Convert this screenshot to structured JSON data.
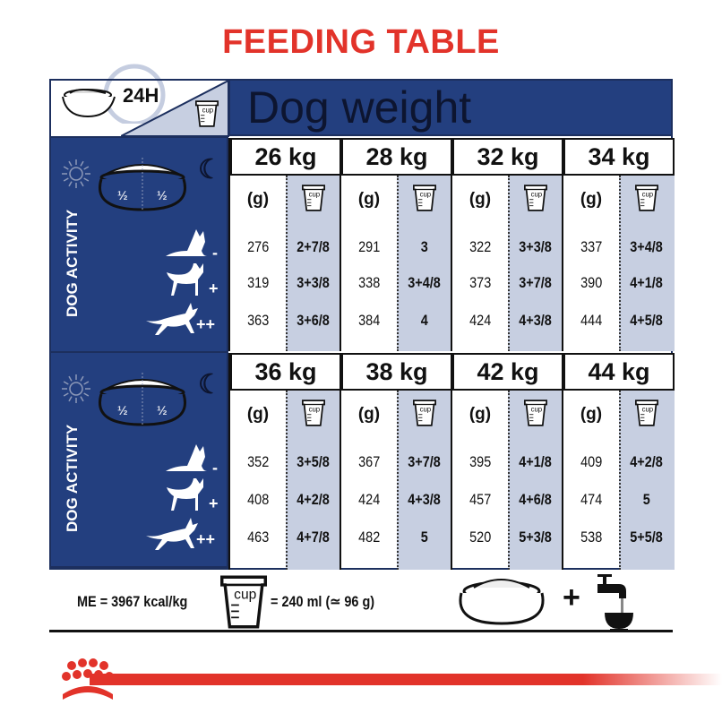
{
  "title": "FEEDING TABLE",
  "header": {
    "duration": "24H",
    "dog_weight": "Dog weight",
    "cup_label": "cup"
  },
  "left_panel": {
    "activity_label": "DOG ACTIVITY",
    "half": "½",
    "levels": [
      "-",
      "+",
      "++"
    ]
  },
  "columns": {
    "grams": "(g)",
    "cup": "cup"
  },
  "blocks": [
    {
      "weights": [
        {
          "kg": "26 kg",
          "g": [
            "276",
            "319",
            "363"
          ],
          "cups": [
            "2+7/8",
            "3+3/8",
            "3+6/8"
          ]
        },
        {
          "kg": "28 kg",
          "g": [
            "291",
            "338",
            "384"
          ],
          "cups": [
            "3",
            "3+4/8",
            "4"
          ]
        },
        {
          "kg": "32 kg",
          "g": [
            "322",
            "373",
            "424"
          ],
          "cups": [
            "3+3/8",
            "3+7/8",
            "4+3/8"
          ]
        },
        {
          "kg": "34 kg",
          "g": [
            "337",
            "390",
            "444"
          ],
          "cups": [
            "3+4/8",
            "4+1/8",
            "4+5/8"
          ]
        }
      ]
    },
    {
      "weights": [
        {
          "kg": "36 kg",
          "g": [
            "352",
            "408",
            "463"
          ],
          "cups": [
            "3+5/8",
            "4+2/8",
            "4+7/8"
          ]
        },
        {
          "kg": "38 kg",
          "g": [
            "367",
            "424",
            "482"
          ],
          "cups": [
            "3+7/8",
            "4+3/8",
            "5"
          ]
        },
        {
          "kg": "42 kg",
          "g": [
            "395",
            "457",
            "520"
          ],
          "cups": [
            "4+1/8",
            "4+6/8",
            "5+3/8"
          ]
        },
        {
          "kg": "44 kg",
          "g": [
            "409",
            "474",
            "538"
          ],
          "cups": [
            "4+2/8",
            "5",
            "5+5/8"
          ]
        }
      ]
    }
  ],
  "footer": {
    "energy": "ME = 3967 kcal/kg",
    "cup_equiv": "= 240 ml (≃ 96 g)",
    "cup_label": "cup",
    "plus": "+"
  },
  "colors": {
    "title_red": "#e2332a",
    "navy": "#233f7f",
    "cup_col": "#c7cfe1"
  }
}
